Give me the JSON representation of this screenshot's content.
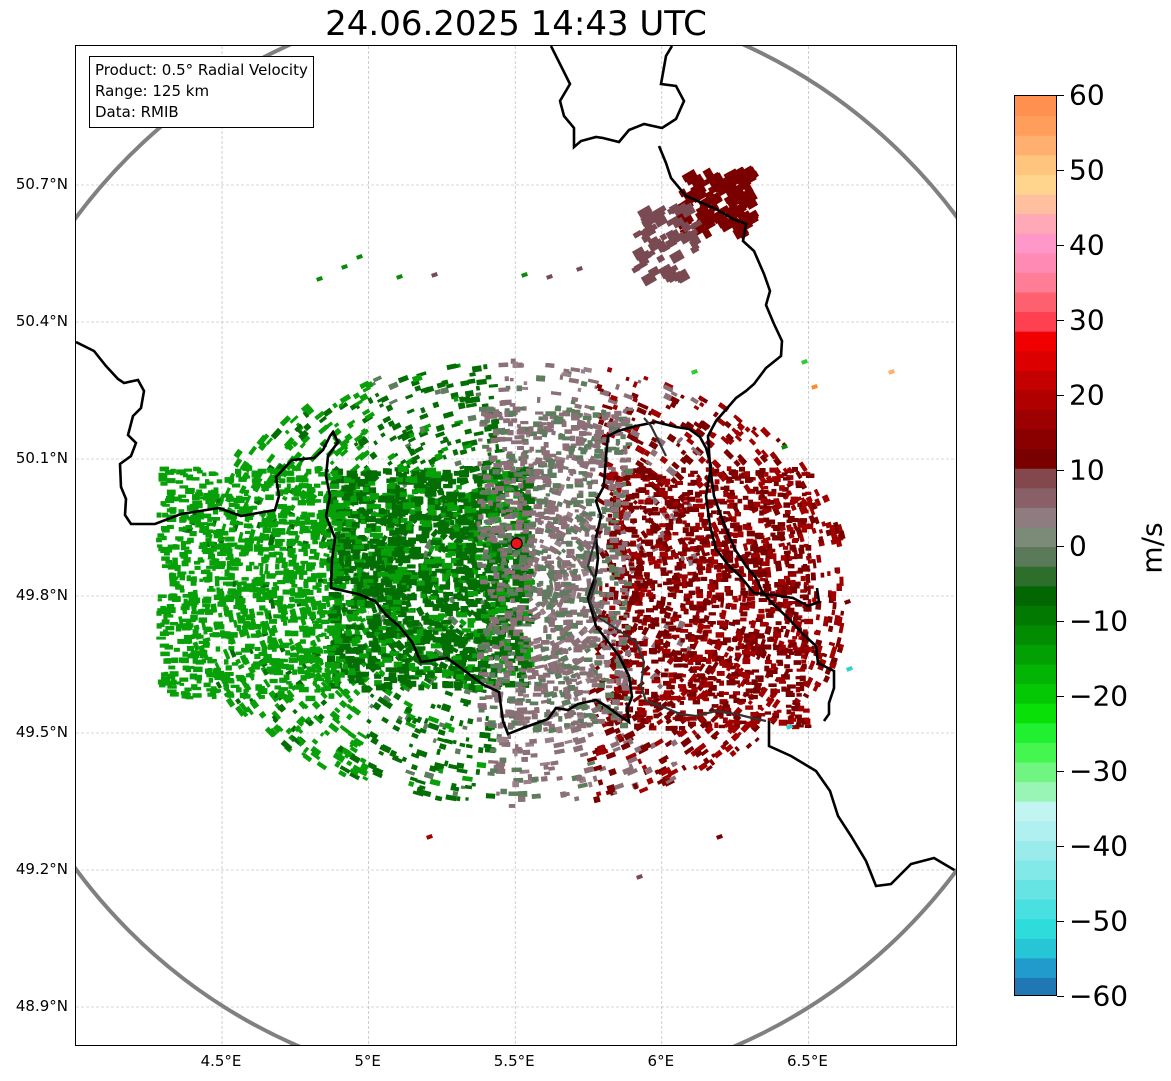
{
  "title": "24.06.2025 14:43 UTC",
  "info_box": {
    "product": "Product: 0.5° Radial Velocity",
    "range": "Range: 125 km",
    "source": "Data: RMIB"
  },
  "y_ticks": [
    "50.7°N",
    "50.4°N",
    "50.1°N",
    "49.8°N",
    "49.5°N",
    "49.2°N",
    "48.9°N"
  ],
  "x_ticks": [
    "4.5°E",
    "5°E",
    "5.5°E",
    "6°E",
    "6.5°E"
  ],
  "map_extent": {
    "lon": [
      4.0,
      7.0
    ],
    "lat": [
      48.8,
      50.99
    ]
  },
  "radar_site": {
    "lon": 5.505,
    "lat": 49.915,
    "color": "#e8141a"
  },
  "range_ring_km": 125,
  "colorbar": {
    "unit": "m/s",
    "range": [
      -60,
      60
    ],
    "tick_labels": [
      "60",
      "50",
      "40",
      "30",
      "20",
      "10",
      "0",
      "−10",
      "−20",
      "−30",
      "−40",
      "−50",
      "−60"
    ],
    "colors": [
      "#1f77b4",
      "#219bcc",
      "#26c6d6",
      "#2fdcdc",
      "#48e0e0",
      "#66e4e4",
      "#82e8e8",
      "#9aecec",
      "#b0f0f0",
      "#c2f4f2",
      "#98f5b5",
      "#70f582",
      "#45f550",
      "#20f030",
      "#08e008",
      "#05c805",
      "#04b404",
      "#03a003",
      "#028c02",
      "#027a02",
      "#026602",
      "#2d6e2d",
      "#5a7a5a",
      "#7c8a78",
      "#8f7c80",
      "#8a6068",
      "#82484e",
      "#7a0000",
      "#8a0000",
      "#9c0000",
      "#b00000",
      "#c40000",
      "#dc0000",
      "#f00000",
      "#ff4050",
      "#ff6070",
      "#ff7d96",
      "#ff8ab4",
      "#ff98c8",
      "#ffa8b8",
      "#ffc0a0",
      "#ffd48c",
      "#ffc47e",
      "#ffb070",
      "#ff9e5c",
      "#ff9050"
    ]
  },
  "velocity_colors": {
    "inbound_strong": "#08a008",
    "inbound": "#036e03",
    "near_zero_green": "#5e7c5e",
    "near_zero_mauve": "#8c7078",
    "outbound": "#7a0000",
    "outbound_strong": "#a00000"
  }
}
